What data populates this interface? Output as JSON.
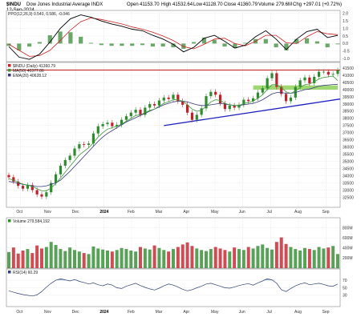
{
  "header": {
    "ticker": "$INDU",
    "name": "Dow Jones Industrial Average INDX",
    "date": "12-Sep-2024",
    "open_label": "Open",
    "open": "41153.70",
    "high_label": "High",
    "high": "41532.64",
    "low_label": "Low",
    "low": "41128.70",
    "close_label": "Close",
    "close": "41360.79",
    "volume_label": "Volume",
    "volume": "279.6M",
    "chg_label": "Chg",
    "chg": "+297.01 (+0.72%)"
  },
  "colors": {
    "up": "#2e8b2e",
    "down": "#c0202a",
    "ma50": "#3a9a3a",
    "ma200": "#3a3a7a",
    "resistance": "#c01818",
    "trend": "#2020c0",
    "support_box": "#8ed05a",
    "ppo": "#000000",
    "ppo_signal": "#cc2020",
    "rsi": "#304070",
    "rsi_fill": "#7f9fb8"
  },
  "chart_data": [
    {
      "type": "line",
      "panel": "ppo",
      "legend": [
        "PPO(12,26,9) 0.540, 0.586, -0.046"
      ],
      "ylim": [
        -1.2,
        2.2
      ],
      "yticks": [
        "2.0",
        "1.5",
        "1.0",
        "0.5",
        "0.0",
        "-0.5",
        "-1.0"
      ],
      "series": [
        {
          "name": "PPO",
          "values": [
            -0.2,
            -0.9,
            -1.05,
            -0.7,
            0.1,
            1.0,
            1.65,
            1.9,
            1.75,
            1.5,
            1.3,
            1.15,
            0.95,
            0.85,
            0.55,
            0.3,
            -0.05,
            -0.55,
            -0.25,
            0.35,
            0.55,
            0.15,
            -0.3,
            -0.1,
            0.45,
            0.85,
            0.3,
            -0.4,
            0.3,
            0.8,
            0.95,
            0.4,
            0.54
          ]
        },
        {
          "name": "Signal",
          "values": [
            -0.05,
            -0.45,
            -0.85,
            -0.8,
            -0.45,
            0.2,
            0.9,
            1.45,
            1.7,
            1.6,
            1.45,
            1.3,
            1.1,
            0.95,
            0.75,
            0.5,
            0.2,
            -0.2,
            -0.35,
            -0.05,
            0.3,
            0.35,
            0.0,
            -0.15,
            0.15,
            0.55,
            0.55,
            0.05,
            0.0,
            0.45,
            0.8,
            0.65,
            0.59
          ]
        }
      ]
    },
    {
      "type": "candlestick",
      "panel": "price",
      "legend": [
        "$INDU (Daily) 41360.79",
        "MA(50) 40377.86",
        "EMA(20) 40628.12"
      ],
      "ylim": [
        31800,
        41900
      ],
      "yticks": [
        "41500",
        "41000",
        "40500",
        "40000",
        "39500",
        "39000",
        "38500",
        "38000",
        "37500",
        "37000",
        "36500",
        "36000",
        "35500",
        "35000",
        "34500",
        "34000",
        "33500",
        "33000",
        "32500"
      ],
      "x_labels": [
        "Oct",
        "Nov",
        "Dec",
        "2024",
        "Feb",
        "Mar",
        "Apr",
        "May",
        "Jun",
        "Jul",
        "Aug",
        "Sep"
      ],
      "close_series": [
        33900,
        33600,
        33300,
        33100,
        33350,
        33000,
        32700,
        32550,
        32850,
        33500,
        34100,
        34700,
        35100,
        35400,
        35900,
        36200,
        36150,
        36250,
        36950,
        37450,
        37600,
        37700,
        37450,
        37550,
        37900,
        38150,
        38400,
        38600,
        38250,
        38750,
        39000,
        38900,
        39250,
        39450,
        39350,
        39650,
        39200,
        38950,
        38400,
        37900,
        38250,
        38700,
        39550,
        39850,
        39650,
        39050,
        38650,
        38900,
        38750,
        38950,
        39300,
        39200,
        39400,
        39800,
        40100,
        40800,
        41150,
        40200,
        39700,
        39200,
        39450,
        40200,
        40650,
        40850,
        40450,
        40900,
        41250,
        41250,
        41050,
        41100,
        41360
      ],
      "ma50_series": [
        33600,
        33550,
        33480,
        33400,
        33350,
        33300,
        33250,
        33250,
        33300,
        33400,
        33500,
        33700,
        34000,
        34300,
        34650,
        35000,
        35350,
        35700,
        36050,
        36400,
        36700,
        36950,
        37150,
        37350,
        37550,
        37750,
        37900,
        38050,
        38200,
        38350,
        38500,
        38650,
        38800,
        38950,
        39050,
        39150,
        39200,
        39200,
        39150,
        39050,
        38950,
        38900,
        38900,
        38950,
        39000,
        39050,
        39000,
        38950,
        38900,
        38900,
        38950,
        39000,
        39050,
        39150,
        39300,
        39500,
        39700,
        39800,
        39800,
        39750,
        39750,
        39800,
        39900,
        40000,
        40050,
        40150,
        40250,
        40300,
        40330,
        40360,
        40378
      ],
      "ema20_series": [
        33800,
        33700,
        33550,
        33400,
        33350,
        33250,
        33100,
        32950,
        32950,
        33150,
        33450,
        33850,
        34250,
        34650,
        35050,
        35450,
        35700,
        35950,
        36300,
        36700,
        37000,
        37250,
        37350,
        37450,
        37600,
        37800,
        38000,
        38200,
        38250,
        38400,
        38550,
        38650,
        38850,
        39050,
        39150,
        39300,
        39300,
        39200,
        38950,
        38650,
        38500,
        38550,
        38850,
        39150,
        39300,
        39250,
        39050,
        38950,
        38900,
        38900,
        39050,
        39100,
        39200,
        39400,
        39650,
        40000,
        40350,
        40350,
        40150,
        39850,
        39750,
        39900,
        40150,
        40350,
        40400,
        40550,
        40750,
        40850,
        40900,
        40950,
        40628
      ],
      "resistance_level": 41370,
      "trendline": {
        "from_label": "Apr",
        "from": 37500,
        "to_label": "Sep",
        "to": 39350
      },
      "support_zone": [
        40000,
        40300
      ]
    },
    {
      "type": "bar",
      "panel": "volume",
      "legend": [
        "Volume 279,584,192"
      ],
      "ylim": [
        0,
        1000
      ],
      "yticks": [
        "800M",
        "600M",
        "400M",
        "200M"
      ],
      "values": [
        320,
        410,
        290,
        350,
        380,
        300,
        450,
        390,
        420,
        520,
        460,
        380,
        340,
        410,
        360,
        330,
        300,
        280,
        430,
        390,
        370,
        350,
        330,
        360,
        400,
        380,
        350,
        330,
        420,
        390,
        370,
        450,
        400,
        360,
        330,
        380,
        420,
        470,
        510,
        440,
        390,
        360,
        340,
        380,
        420,
        390,
        360,
        330,
        410,
        380,
        360,
        420,
        390,
        440,
        470,
        400,
        370,
        520,
        610,
        480,
        420,
        380,
        350,
        400,
        380,
        360,
        420,
        390,
        410,
        440,
        280
      ]
    },
    {
      "type": "line",
      "panel": "rsi",
      "legend": [
        "RSI(14) 60.29"
      ],
      "ylim": [
        0,
        100
      ],
      "yticks": [
        "70",
        "50",
        "30"
      ],
      "values": [
        42,
        38,
        35,
        32,
        30,
        28,
        31,
        40,
        52,
        62,
        70,
        74,
        71,
        68,
        72,
        67,
        64,
        60,
        63,
        58,
        55,
        60,
        57,
        50,
        48,
        54,
        58,
        62,
        56,
        51,
        47,
        44,
        49,
        55,
        60,
        57,
        52,
        46,
        42,
        45,
        50,
        54,
        60,
        62,
        58,
        54,
        50,
        49,
        52,
        56,
        59,
        61,
        57,
        63,
        68,
        74,
        71,
        62,
        45,
        40,
        48,
        55,
        60,
        63,
        58,
        60,
        62,
        59,
        55,
        54,
        60
      ]
    }
  ]
}
